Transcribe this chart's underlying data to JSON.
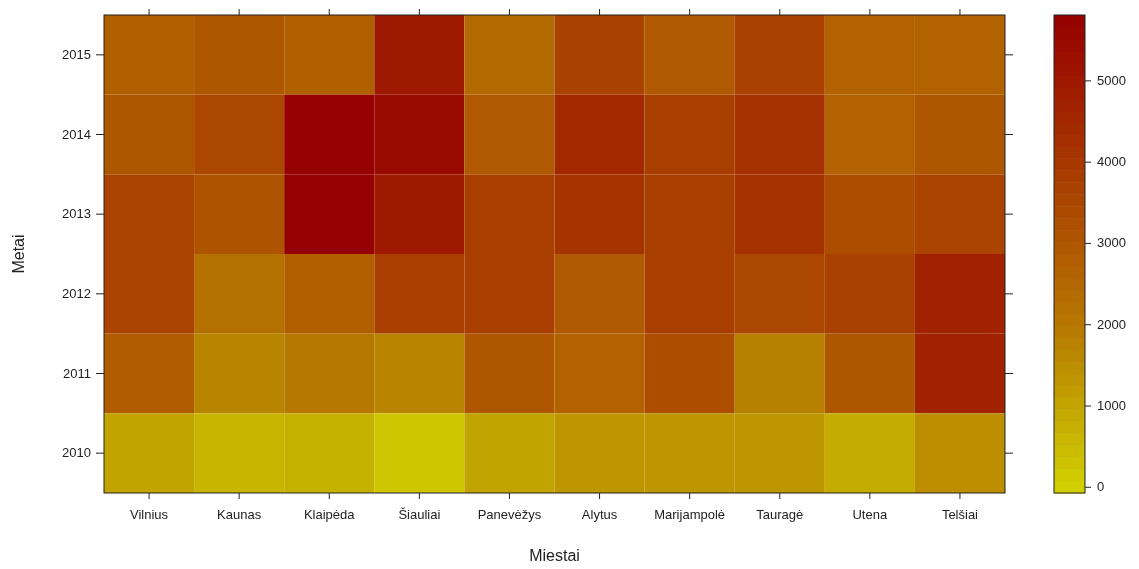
{
  "chart_data": {
    "type": "heatmap",
    "xlabel": "Miestai",
    "ylabel": "Metai",
    "categories": [
      "Vilnius",
      "Kaunas",
      "Klaipėda",
      "Šiauliai",
      "Panevėžys",
      "Alytus",
      "Marijampolė",
      "Tauragė",
      "Utena",
      "Telšiai"
    ],
    "y_categories": [
      "2015",
      "2014",
      "2013",
      "2012",
      "2011",
      "2010"
    ],
    "cells": [
      [
        2700,
        3000,
        2700,
        5000,
        2400,
        3700,
        2900,
        3700,
        2600,
        2600
      ],
      [
        3000,
        3500,
        5800,
        5500,
        2900,
        4500,
        3800,
        4200,
        2600,
        3000
      ],
      [
        3600,
        3100,
        5800,
        5000,
        3800,
        4100,
        3800,
        4200,
        3300,
        3600
      ],
      [
        3600,
        2200,
        2700,
        3800,
        3800,
        2900,
        3800,
        3500,
        3700,
        4700
      ],
      [
        2800,
        1700,
        2000,
        1700,
        3000,
        2600,
        3300,
        1800,
        3000,
        4700
      ],
      [
        1000,
        600,
        700,
        200,
        1000,
        1300,
        1300,
        1300,
        800,
        1500
      ]
    ],
    "clim": [
      -70,
      5810
    ],
    "cticks": [
      0,
      1000,
      2000,
      3000,
      4000,
      5000
    ]
  }
}
